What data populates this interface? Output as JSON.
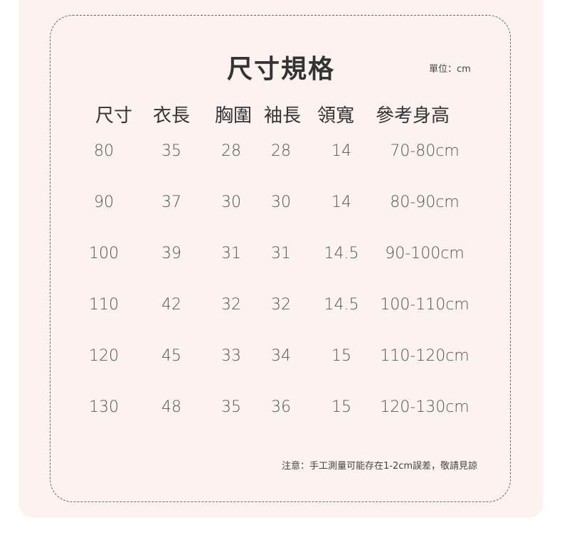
{
  "title": "尺寸規格",
  "unit": "單位：cm",
  "columns": [
    "尺寸",
    "衣長",
    "胸圍",
    "袖長",
    "領寬",
    "參考身高"
  ],
  "rows": [
    [
      "80",
      "35",
      "28",
      "28",
      "14",
      "70-80cm"
    ],
    [
      "90",
      "37",
      "30",
      "30",
      "14",
      "80-90cm"
    ],
    [
      "100",
      "39",
      "31",
      "31",
      "14.5",
      "90-100cm"
    ],
    [
      "110",
      "42",
      "32",
      "32",
      "14.5",
      "100-110cm"
    ],
    [
      "120",
      "45",
      "33",
      "34",
      "15",
      "110-120cm"
    ],
    [
      "130",
      "48",
      "35",
      "36",
      "15",
      "120-130cm"
    ]
  ],
  "note": "注意：手工測量可能存在1-2cm誤差，敬請見諒",
  "colors": {
    "panel": "#fcf2f0",
    "border": "#6a6a6a",
    "text": "#333333"
  }
}
